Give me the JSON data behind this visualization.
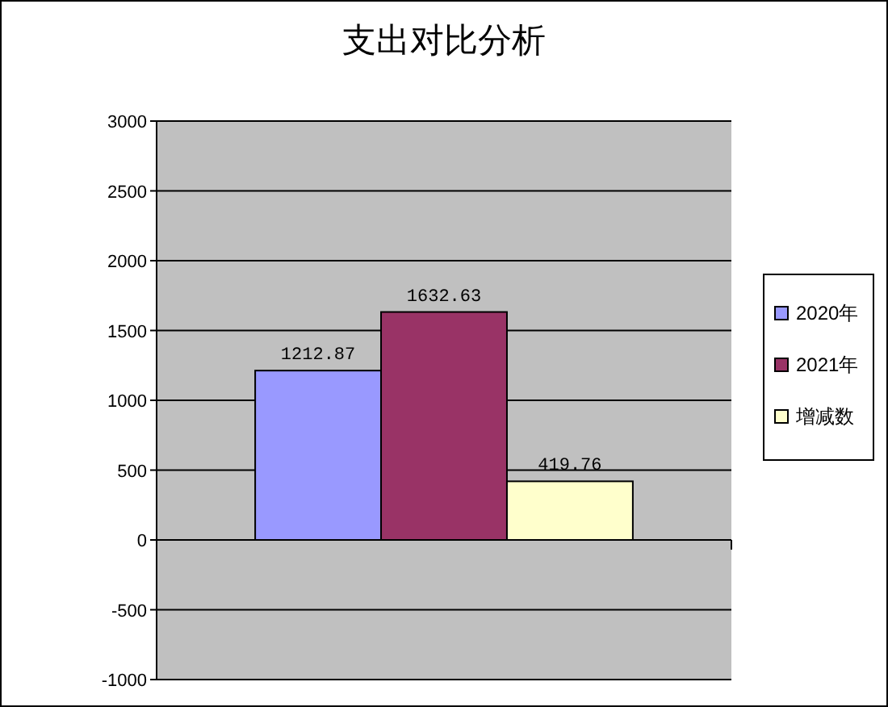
{
  "chart_data": {
    "type": "bar",
    "title": "支出对比分析",
    "categories": [
      null
    ],
    "series": [
      {
        "name": "2020年",
        "color": "#9999ff",
        "values": [
          1212.87
        ]
      },
      {
        "name": "2021年",
        "color": "#993366",
        "values": [
          1632.63
        ]
      },
      {
        "name": "增减数",
        "color": "#ffffcc",
        "values": [
          419.76
        ]
      }
    ],
    "ylim": [
      -1000,
      3000
    ],
    "yticks": [
      -1000,
      -500,
      0,
      500,
      1000,
      1500,
      2000,
      2500,
      3000
    ],
    "grid": "y",
    "legend": "right",
    "data_labels": true
  }
}
